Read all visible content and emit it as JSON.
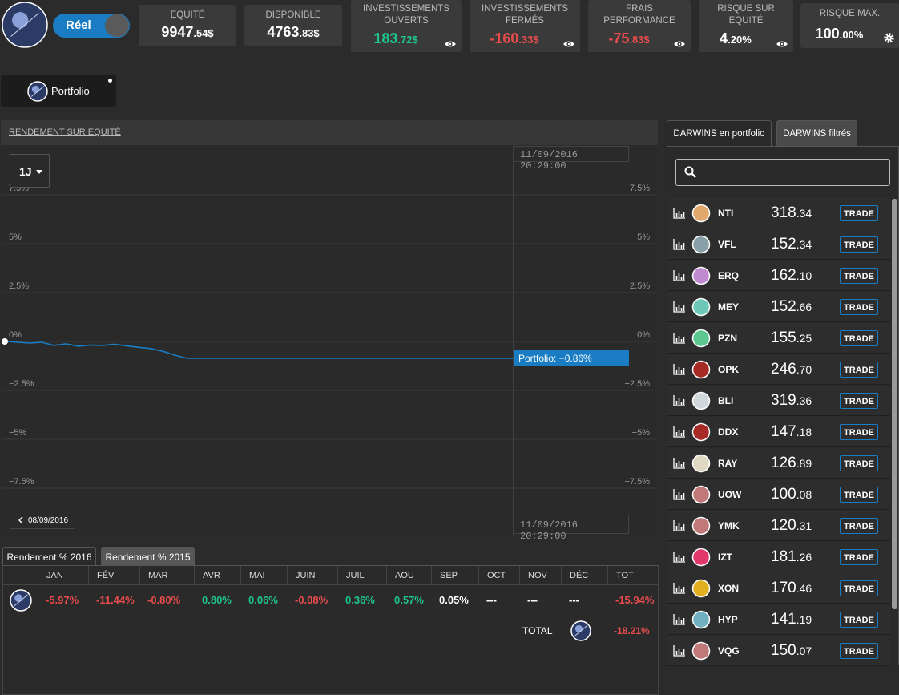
{
  "header": {
    "account_mode": "Réel",
    "stats": [
      {
        "label": "EQUITÉ",
        "value": "9947",
        "decimals": ".54$",
        "color": "#ffffff"
      },
      {
        "label": "DISPONIBLE",
        "value": "4763",
        "decimals": ".83$",
        "color": "#ffffff"
      },
      {
        "label": "INVESTISSEMENTS OUVERTS",
        "value": "183",
        "decimals": ".72$",
        "color": "#1fc48a"
      },
      {
        "label": "INVESTISSEMENTS FERMÉS",
        "value": "-160",
        "decimals": ".33$",
        "color": "#e84c4c"
      },
      {
        "label": "FRAIS PERFORMANCE",
        "value": "-75",
        "decimals": ".83$",
        "color": "#e84c4c"
      },
      {
        "label": "RISQUE SUR EQUITÉ",
        "value": "4",
        "decimals": ".20%",
        "color": "#ffffff"
      },
      {
        "label": "RISQUE MAX.",
        "value": "100",
        "decimals": ".00%",
        "color": "#ffffff"
      }
    ]
  },
  "portfolio_button": "Portfolio",
  "chart": {
    "title": "RENDEMENT SUR EQUITÉ",
    "period": "1J",
    "timestamp_top": "11/09/2016 20:29:00",
    "timestamp_bottom": "11/09/2016 20:29:00",
    "back_date": "08/09/2016",
    "ylim": [
      -10,
      10
    ],
    "yticks": [
      {
        "value": 7.5,
        "label": "7.5%"
      },
      {
        "value": 5,
        "label": "5%"
      },
      {
        "value": 2.5,
        "label": "2.5%"
      },
      {
        "value": 0,
        "label": "0%"
      },
      {
        "value": -2.5,
        "label": "−2.5%"
      },
      {
        "value": -5,
        "label": "−5%"
      },
      {
        "value": -7.5,
        "label": "−7.5%"
      }
    ],
    "series": {
      "label": "Portfolio: −0.86%",
      "color": "#1a7dc4",
      "values": [
        0,
        -0.04,
        -0.08,
        -0.04,
        -0.2,
        -0.12,
        -0.24,
        -0.18,
        -0.2,
        -0.14,
        -0.22,
        -0.3,
        -0.36,
        -0.5,
        -0.7,
        -0.86,
        -0.86,
        -0.86,
        -0.86,
        -0.86,
        -0.86,
        -0.86,
        -0.86,
        -0.86,
        -0.86,
        -0.86,
        -0.86,
        -0.86,
        -0.86,
        -0.86,
        -0.86,
        -0.86,
        -0.86,
        -0.86,
        -0.86,
        -0.86,
        -0.86,
        -0.86,
        -0.86,
        -0.86,
        -0.86,
        -0.86,
        -0.86
      ]
    }
  },
  "returns": {
    "tabs": [
      "Rendement % 2016",
      "Rendement % 2015"
    ],
    "headers": [
      "JAN",
      "FÉV",
      "MAR",
      "AVR",
      "MAI",
      "JUIN",
      "JUIL",
      "AOU",
      "SEP",
      "OCT",
      "NOV",
      "DÉC",
      "TOT"
    ],
    "row": [
      {
        "text": "-5.97%",
        "color": "#e84c4c"
      },
      {
        "text": "-11.44%",
        "color": "#e84c4c"
      },
      {
        "text": "-0.80%",
        "color": "#e84c4c"
      },
      {
        "text": "0.80%",
        "color": "#1fc48a"
      },
      {
        "text": "0.06%",
        "color": "#1fc48a"
      },
      {
        "text": "-0.08%",
        "color": "#e84c4c"
      },
      {
        "text": "0.36%",
        "color": "#1fc48a"
      },
      {
        "text": "0.57%",
        "color": "#1fc48a"
      },
      {
        "text": "0.05%",
        "color": "#ffffff"
      },
      {
        "text": "---",
        "color": "#ffffff"
      },
      {
        "text": "---",
        "color": "#ffffff"
      },
      {
        "text": "---",
        "color": "#ffffff"
      },
      {
        "text": "-15.94%",
        "color": "#e84c4c"
      }
    ],
    "total_label": "TOTAL",
    "total": "-18.21%"
  },
  "darwins": {
    "tabs": [
      "DARWINS en portfolio",
      "DARWINS filtrés"
    ],
    "items": [
      {
        "name": "NTI",
        "color": "#e0a86a",
        "price": "318",
        "decimals": ".34",
        "button": "TRADE"
      },
      {
        "name": "VFL",
        "color": "#8aa0a8",
        "price": "152",
        "decimals": ".34",
        "button": "TRADE"
      },
      {
        "name": "ERQ",
        "color": "#c08ad0",
        "price": "162",
        "decimals": ".10",
        "button": "TRADE"
      },
      {
        "name": "MEY",
        "color": "#6ec8b8",
        "price": "152",
        "decimals": ".66",
        "button": "TRADE"
      },
      {
        "name": "PZN",
        "color": "#5cc890",
        "price": "155",
        "decimals": ".25",
        "button": "TRADE"
      },
      {
        "name": "OPK",
        "color": "#a82a24",
        "price": "246",
        "decimals": ".70",
        "button": "TRADE"
      },
      {
        "name": "BLI",
        "color": "#d0d8dc",
        "price": "319",
        "decimals": ".36",
        "button": "TRADE"
      },
      {
        "name": "DDX",
        "color": "#a82a24",
        "price": "147",
        "decimals": ".18",
        "button": "TRADE"
      },
      {
        "name": "RAY",
        "color": "#e0d8c0",
        "price": "126",
        "decimals": ".89",
        "button": "TRADE"
      },
      {
        "name": "UOW",
        "color": "#c07878",
        "price": "100",
        "decimals": ".08",
        "button": "TRADE"
      },
      {
        "name": "YMK",
        "color": "#c07878",
        "price": "120",
        "decimals": ".31",
        "button": "TRADE"
      },
      {
        "name": "IZT",
        "color": "#e0386a",
        "price": "181",
        "decimals": ".26",
        "button": "TRADE"
      },
      {
        "name": "XON",
        "color": "#e0b020",
        "price": "170",
        "decimals": ".46",
        "button": "TRADE"
      },
      {
        "name": "HYP",
        "color": "#70b0c0",
        "price": "141",
        "decimals": ".19",
        "button": "TRADE"
      },
      {
        "name": "VQG",
        "color": "#c07878",
        "price": "150",
        "decimals": ".07",
        "button": "TRADE"
      }
    ]
  }
}
